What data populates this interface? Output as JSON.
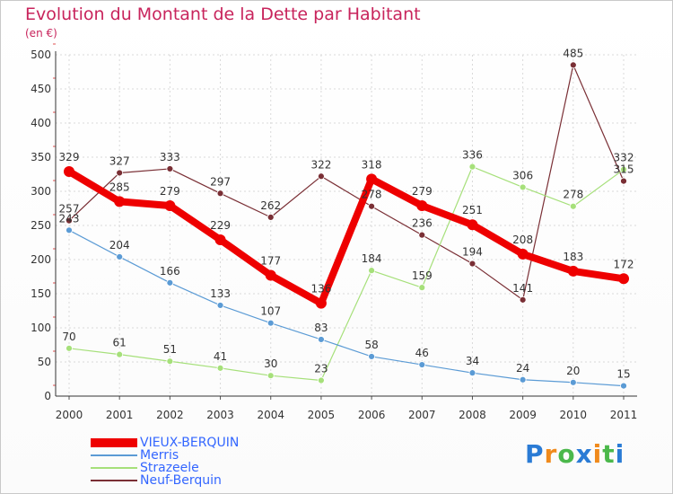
{
  "title": "Evolution du Montant de la Dette par Habitant",
  "subtitle": "(en €)",
  "logo": {
    "text": "Proxiti",
    "letter_colors": [
      "#2a7bd5",
      "#f08a1c",
      "#4bb84b",
      "#2a7bd5",
      "#f08a1c",
      "#4bb84b",
      "#2a7bd5"
    ]
  },
  "chart_data": {
    "type": "line",
    "title": "Evolution du Montant de la Dette par Habitant",
    "ylabel": "(en €)",
    "xlabel": "",
    "x": [
      "2000",
      "2001",
      "2002",
      "2003",
      "2004",
      "2005",
      "2006",
      "2007",
      "2008",
      "2009",
      "2010",
      "2011"
    ],
    "ylim": [
      0,
      500
    ],
    "yticks": [
      "0",
      "50",
      "100",
      "150",
      "200",
      "250",
      "300",
      "350",
      "400",
      "450",
      "500"
    ],
    "grid": true,
    "legend_position": "bottom-left",
    "series": [
      {
        "name": "VIEUX-BERQUIN",
        "color": "#ee0000",
        "values": [
          329,
          285,
          279,
          229,
          177,
          136,
          318,
          279,
          251,
          208,
          183,
          172
        ],
        "labels": [
          "329",
          "285",
          "279",
          "229",
          "177",
          "136",
          "318",
          "279",
          "251",
          "208",
          "183",
          "172"
        ]
      },
      {
        "name": "Merris",
        "color": "#5b9bd5",
        "values": [
          243,
          204,
          166,
          133,
          107,
          83,
          58,
          46,
          34,
          24,
          20,
          15
        ],
        "labels": [
          "243",
          "204",
          "166",
          "133",
          "107",
          "83",
          "58",
          "46",
          "34",
          "24",
          "20",
          "15"
        ]
      },
      {
        "name": "Strazeele",
        "color": "#a6e07a",
        "values": [
          70,
          61,
          51,
          41,
          30,
          23,
          184,
          159,
          336,
          306,
          278,
          332
        ],
        "labels": [
          "70",
          "61",
          "51",
          "41",
          "30",
          "23",
          "184",
          "159",
          "336",
          "306",
          "278",
          "332"
        ]
      },
      {
        "name": "Neuf-Berquin",
        "color": "#7a2f35",
        "values": [
          257,
          327,
          333,
          297,
          262,
          322,
          278,
          236,
          194,
          141,
          485,
          315
        ],
        "labels": [
          "257",
          "327",
          "333",
          "297",
          "262",
          "322",
          "278",
          "236",
          "194",
          "141",
          "485",
          "315"
        ]
      }
    ]
  }
}
